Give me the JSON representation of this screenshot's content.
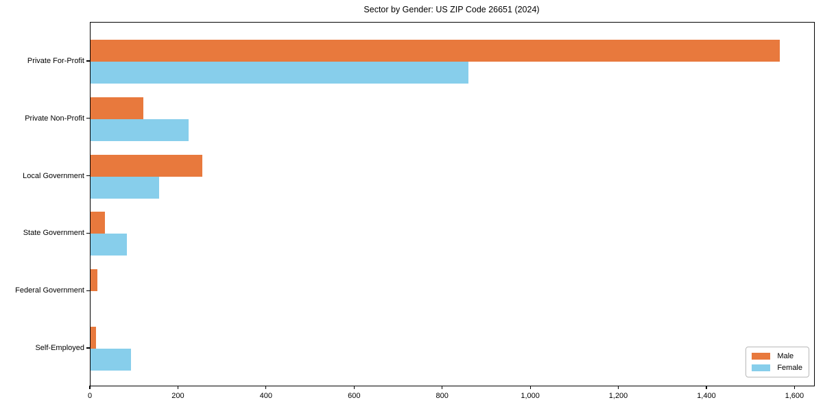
{
  "chart_data": {
    "type": "bar",
    "orientation": "horizontal",
    "title": "Sector by Gender: US ZIP Code 26651 (2024)",
    "categories": [
      "Private For-Profit",
      "Private Non-Profit",
      "Local Government",
      "State Government",
      "Federal Government",
      "Self-Employed"
    ],
    "series": [
      {
        "name": "Male",
        "color": "#e8793d",
        "values": [
          1565,
          120,
          253,
          33,
          16,
          12
        ]
      },
      {
        "name": "Female",
        "color": "#87ceeb",
        "values": [
          858,
          223,
          155,
          83,
          0,
          92
        ]
      }
    ],
    "xlabel": "",
    "ylabel": "",
    "xlim": [
      0,
      1643
    ],
    "xticks": [
      0,
      200,
      400,
      600,
      800,
      1000,
      1200,
      1400,
      1600
    ],
    "xtick_labels": [
      "0",
      "200",
      "400",
      "600",
      "800",
      "1,000",
      "1,200",
      "1,400",
      "1,600"
    ],
    "grid": false,
    "legend": {
      "position": "lower-right",
      "entries": [
        "Male",
        "Female"
      ]
    }
  }
}
